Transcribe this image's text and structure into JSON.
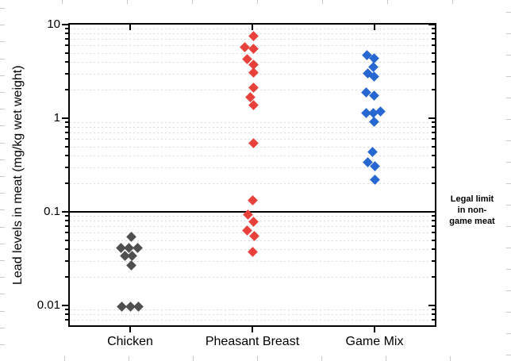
{
  "chart_data": {
    "type": "scatter",
    "subtype": "categorical-dot-plot",
    "title": "",
    "xlabel": "",
    "ylabel": "Lead levels in meat (mg/kg wet weight)",
    "y_scale": "log",
    "ylim": [
      0.006,
      10.3
    ],
    "grid": "horizontal dotted minor gridlines",
    "legend_position": "none",
    "marker": "diamond",
    "yticks": [
      {
        "value": 10,
        "label": "10"
      },
      {
        "value": 1,
        "label": "1"
      },
      {
        "value": 0.1,
        "label": "0.1"
      },
      {
        "value": 0.01,
        "label": "0.01"
      }
    ],
    "categories": [
      "Chicken",
      "Pheasant Breast",
      "Game Mix"
    ],
    "reference_line": {
      "value": 0.1,
      "color": "#000000",
      "label": "Legal limit\nin non-\ngame meat"
    },
    "series": [
      {
        "name": "Chicken",
        "color": "#4f4f4f",
        "points": [
          {
            "v": 0.054,
            "dx": 1
          },
          {
            "v": 0.041,
            "dx": -12
          },
          {
            "v": 0.041,
            "dx": -2
          },
          {
            "v": 0.041,
            "dx": 9
          },
          {
            "v": 0.034,
            "dx": -7
          },
          {
            "v": 0.034,
            "dx": 2
          },
          {
            "v": 0.027,
            "dx": 1
          },
          {
            "v": 0.0098,
            "dx": -11
          },
          {
            "v": 0.0097,
            "dx": 0
          },
          {
            "v": 0.0098,
            "dx": 10
          }
        ]
      },
      {
        "name": "Pheasant Breast",
        "color": "#e8413c",
        "points": [
          {
            "v": 7.6,
            "dx": 1
          },
          {
            "v": 5.7,
            "dx": -10
          },
          {
            "v": 5.5,
            "dx": 1
          },
          {
            "v": 4.3,
            "dx": -7
          },
          {
            "v": 3.7,
            "dx": 1
          },
          {
            "v": 3.05,
            "dx": 1
          },
          {
            "v": 2.1,
            "dx": 1
          },
          {
            "v": 1.67,
            "dx": -3
          },
          {
            "v": 1.37,
            "dx": 1
          },
          {
            "v": 0.54,
            "dx": 1
          },
          {
            "v": 0.132,
            "dx": 0
          },
          {
            "v": 0.093,
            "dx": -6
          },
          {
            "v": 0.079,
            "dx": 1
          },
          {
            "v": 0.063,
            "dx": -7
          },
          {
            "v": 0.055,
            "dx": 2
          },
          {
            "v": 0.037,
            "dx": 0
          }
        ]
      },
      {
        "name": "Game Mix",
        "color": "#2767d2",
        "points": [
          {
            "v": 4.7,
            "dx": -10
          },
          {
            "v": 4.4,
            "dx": -1
          },
          {
            "v": 3.5,
            "dx": -2
          },
          {
            "v": 3.0,
            "dx": -9
          },
          {
            "v": 2.8,
            "dx": -1
          },
          {
            "v": 1.88,
            "dx": -11
          },
          {
            "v": 1.74,
            "dx": -1
          },
          {
            "v": 1.14,
            "dx": -11
          },
          {
            "v": 1.13,
            "dx": -2
          },
          {
            "v": 1.17,
            "dx": 7
          },
          {
            "v": 0.92,
            "dx": -1
          },
          {
            "v": 0.44,
            "dx": -3
          },
          {
            "v": 0.34,
            "dx": -9
          },
          {
            "v": 0.31,
            "dx": 0
          },
          {
            "v": 0.22,
            "dx": 0
          }
        ]
      }
    ]
  }
}
